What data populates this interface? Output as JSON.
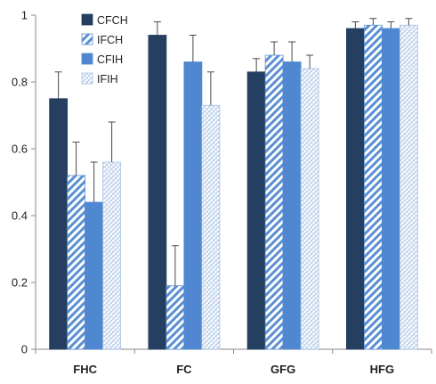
{
  "chart_data": {
    "type": "bar",
    "title": "",
    "xlabel": "",
    "ylabel": "",
    "categories": [
      "FHC",
      "FC",
      "GFG",
      "HFG"
    ],
    "ylim": [
      0,
      1
    ],
    "yticks": [
      "0",
      "0.2",
      "0.4",
      "0.6",
      "0.8",
      "1"
    ],
    "grid": false,
    "legend_position": "top-left",
    "error_bars": true,
    "series": [
      {
        "name": "CFCH",
        "fill": "solid",
        "color": "#243f60",
        "values": [
          0.75,
          0.94,
          0.83,
          0.96
        ],
        "errors": [
          0.08,
          0.04,
          0.04,
          0.02
        ]
      },
      {
        "name": "IFCH",
        "fill": "diagonal-stripes",
        "color": "#5b8fd2",
        "values": [
          0.52,
          0.19,
          0.88,
          0.97
        ],
        "errors": [
          0.1,
          0.12,
          0.04,
          0.02
        ]
      },
      {
        "name": "CFIH",
        "fill": "solid",
        "color": "#4f87d0",
        "values": [
          0.44,
          0.86,
          0.86,
          0.96
        ],
        "errors": [
          0.12,
          0.08,
          0.06,
          0.02
        ]
      },
      {
        "name": "IFIH",
        "fill": "crosshatch-light",
        "color": "#9ab6dc",
        "values": [
          0.56,
          0.73,
          0.84,
          0.97
        ],
        "errors": [
          0.12,
          0.1,
          0.04,
          0.02
        ]
      }
    ]
  }
}
